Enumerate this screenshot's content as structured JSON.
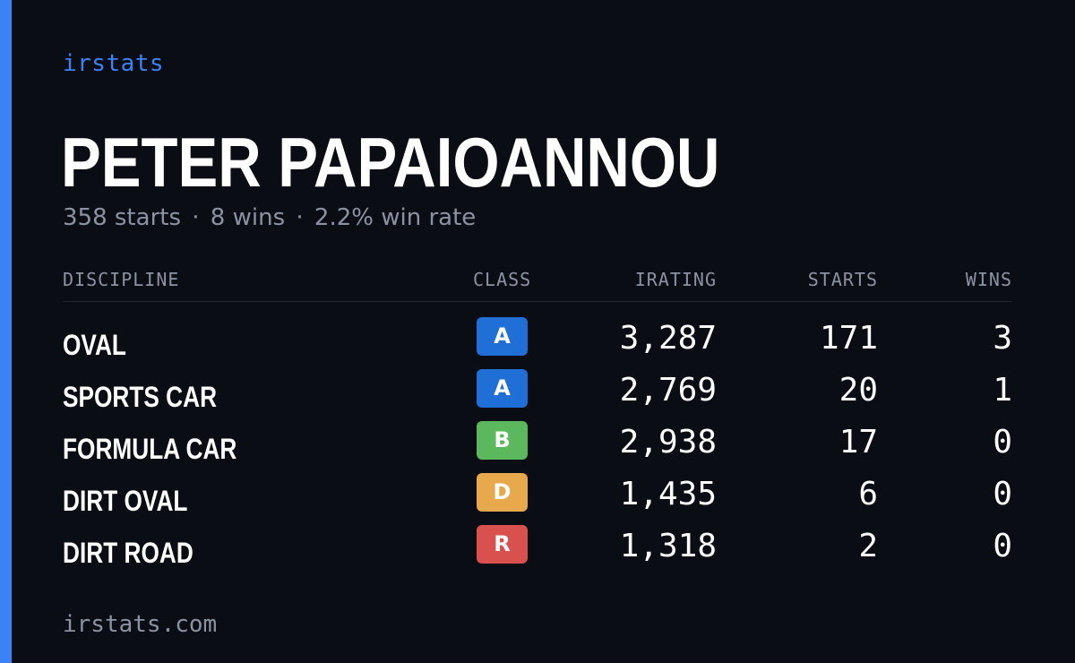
{
  "brand": "irstats",
  "player": {
    "name": "PETER PAPAIOANNOU"
  },
  "summary": {
    "starts": "358 starts",
    "wins": "8 wins",
    "win_rate": "2.2% win rate",
    "separator": "·"
  },
  "table": {
    "headers": {
      "discipline": "DISCIPLINE",
      "class": "CLASS",
      "irating": "IRATING",
      "starts": "STARTS",
      "wins": "WINS"
    },
    "rows": [
      {
        "discipline": "OVAL",
        "class": "A",
        "class_color": "#1f6fd6",
        "irating": "3,287",
        "starts": "171",
        "wins": "3"
      },
      {
        "discipline": "SPORTS CAR",
        "class": "A",
        "class_color": "#1f6fd6",
        "irating": "2,769",
        "starts": "20",
        "wins": "1"
      },
      {
        "discipline": "FORMULA CAR",
        "class": "B",
        "class_color": "#5bb85c",
        "irating": "2,938",
        "starts": "17",
        "wins": "0"
      },
      {
        "discipline": "DIRT OVAL",
        "class": "D",
        "class_color": "#e8a84c",
        "irating": "1,435",
        "starts": "6",
        "wins": "0"
      },
      {
        "discipline": "DIRT ROAD",
        "class": "R",
        "class_color": "#d9514e",
        "irating": "1,318",
        "starts": "2",
        "wins": "0"
      }
    ]
  },
  "footer": {
    "url": "irstats.com"
  },
  "colors": {
    "accent": "#3b82f6",
    "background": "#0b0d14",
    "muted_text": "#8b93a3"
  }
}
